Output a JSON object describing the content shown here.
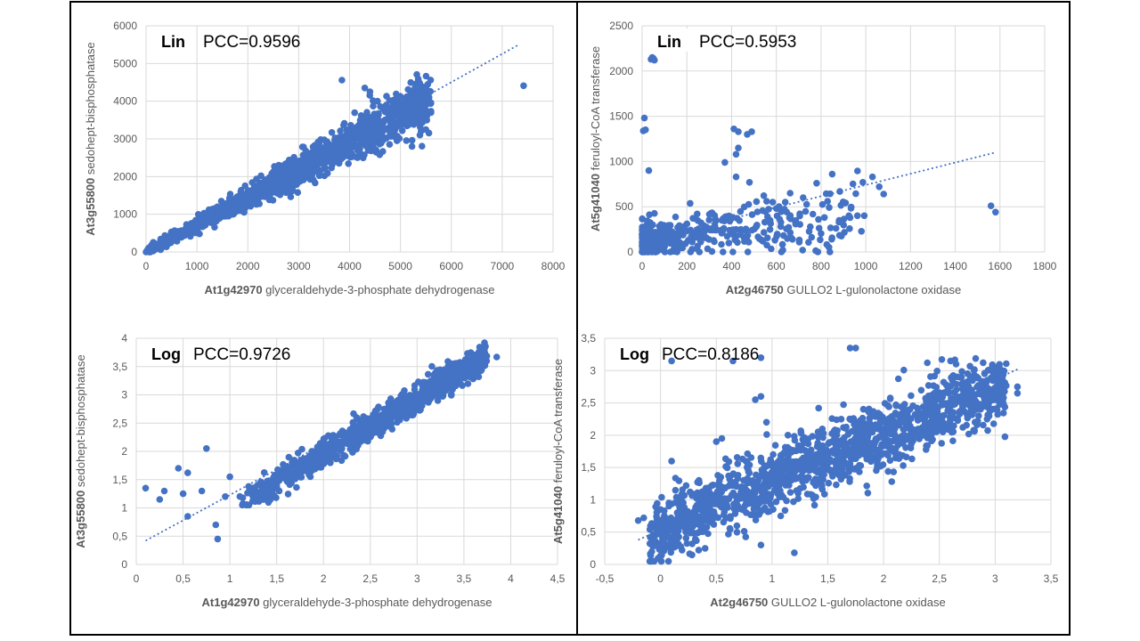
{
  "figure_title": "",
  "colors": {
    "points": "#4472C4",
    "trendline": "#4472C4",
    "grid": "#D9D9D9",
    "axis_text": "#595959",
    "border": "#000000"
  },
  "chart_data": [
    {
      "type": "scatter",
      "id": "top-left",
      "scale_label": "Lin",
      "pcc_label": "PCC=0.9596",
      "xlabel_gene": "At1g42970",
      "xlabel_desc": "glyceraldehyde-3-phosphate dehydrogenase",
      "ylabel_gene": "At3g55800",
      "ylabel_desc": "sedohept-bisphosphatase",
      "xlim": [
        0,
        8000
      ],
      "ylim": [
        0,
        6000
      ],
      "xticks": [
        0,
        1000,
        2000,
        3000,
        4000,
        5000,
        6000,
        7000,
        8000
      ],
      "yticks": [
        0,
        1000,
        2000,
        3000,
        4000,
        5000,
        6000
      ],
      "xtick_labels": [
        "0",
        "1000",
        "2000",
        "3000",
        "4000",
        "5000",
        "6000",
        "7000",
        "8000"
      ],
      "ytick_labels": [
        "0",
        "1000",
        "2000",
        "3000",
        "4000",
        "5000",
        "6000"
      ],
      "trendline": {
        "x": [
          0,
          7300
        ],
        "y": [
          0,
          5480
        ]
      },
      "points": [
        [
          7420,
          4410
        ],
        [
          5200,
          4200
        ],
        [
          4550,
          4000
        ],
        [
          4300,
          4350
        ],
        [
          4400,
          4250
        ],
        [
          3850,
          4560
        ],
        [
          5150,
          4310
        ],
        [
          5500,
          4380
        ],
        [
          5600,
          3700
        ],
        [
          3200,
          2600
        ],
        [
          2800,
          2000
        ]
      ],
      "cloud": {
        "n": 1300,
        "x_min": 0,
        "x_max": 5600,
        "x_shape": 0.85,
        "slope": 0.73,
        "intercept": 0,
        "noise": 0.09,
        "noise_abs": 70,
        "y_min": 0
      }
    },
    {
      "type": "scatter",
      "id": "top-right",
      "scale_label": "Lin",
      "pcc_label": "PCC=0.5953",
      "xlabel_gene": "At2g46750",
      "xlabel_desc": "GULLO2  L-gulonolactone oxidase",
      "ylabel_gene": "At5g41040",
      "ylabel_desc": "feruloyl-CoA transferase",
      "xlim": [
        0,
        1800
      ],
      "ylim": [
        0,
        2500
      ],
      "xticks": [
        0,
        200,
        400,
        600,
        800,
        1000,
        1200,
        1400,
        1600,
        1800
      ],
      "yticks": [
        0,
        500,
        1000,
        1500,
        2000,
        2500
      ],
      "xtick_labels": [
        "0",
        "200",
        "400",
        "600",
        "800",
        "1000",
        "1200",
        "1400",
        "1600",
        "1800"
      ],
      "ytick_labels": [
        "0",
        "500",
        "1000",
        "1500",
        "2000",
        "2500"
      ],
      "trendline": {
        "x": [
          0,
          1580
        ],
        "y": [
          120,
          1100
        ]
      },
      "points": [
        [
          40,
          2130
        ],
        [
          45,
          2150
        ],
        [
          55,
          2120
        ],
        [
          50,
          2140
        ],
        [
          10,
          1480
        ],
        [
          5,
          1340
        ],
        [
          15,
          1350
        ],
        [
          410,
          1360
        ],
        [
          430,
          1330
        ],
        [
          470,
          1300
        ],
        [
          490,
          1330
        ],
        [
          430,
          1150
        ],
        [
          420,
          1080
        ],
        [
          370,
          990
        ],
        [
          30,
          900
        ],
        [
          420,
          830
        ],
        [
          480,
          770
        ],
        [
          1030,
          830
        ],
        [
          1060,
          720
        ],
        [
          1080,
          640
        ],
        [
          850,
          860
        ],
        [
          780,
          760
        ],
        [
          1560,
          510
        ],
        [
          1580,
          440
        ],
        [
          930,
          380
        ],
        [
          880,
          330
        ],
        [
          600,
          480
        ],
        [
          640,
          550
        ],
        [
          720,
          600
        ]
      ],
      "cloud": {
        "n": 420,
        "x_min": 0,
        "x_max": 1000,
        "x_shape": 2.4,
        "slope": 0.33,
        "intercept": 120,
        "noise": 0.45,
        "noise_abs": 90,
        "y_min": 0
      }
    },
    {
      "type": "scatter",
      "id": "bottom-left",
      "scale_label": "Log",
      "pcc_label": "PCC=0.9726",
      "xlabel_gene": "At1g42970",
      "xlabel_desc": "glyceraldehyde-3-phosphate dehydrogenase",
      "ylabel_gene": "At3g55800",
      "ylabel_desc": "sedohept-bisphosphatase",
      "xlim": [
        0,
        4.5
      ],
      "ylim": [
        0,
        4
      ],
      "xticks": [
        0,
        0.5,
        1,
        1.5,
        2,
        2.5,
        3,
        3.5,
        4,
        4.5
      ],
      "yticks": [
        0,
        0.5,
        1,
        1.5,
        2,
        2.5,
        3,
        3.5,
        4
      ],
      "xtick_labels": [
        "0",
        "0,5",
        "1",
        "1,5",
        "2",
        "2,5",
        "3",
        "3,5",
        "4",
        "4,5"
      ],
      "ytick_labels": [
        "0",
        "0,5",
        "1",
        "1,5",
        "2",
        "2,5",
        "3",
        "3,5",
        "4"
      ],
      "trendline": {
        "x": [
          0.1,
          3.75
        ],
        "y": [
          0.42,
          3.7
        ]
      },
      "points": [
        [
          0.1,
          1.35
        ],
        [
          0.25,
          1.15
        ],
        [
          0.3,
          1.3
        ],
        [
          0.45,
          1.7
        ],
        [
          0.55,
          1.62
        ],
        [
          0.55,
          0.85
        ],
        [
          0.85,
          0.7
        ],
        [
          0.87,
          0.45
        ],
        [
          0.5,
          1.25
        ],
        [
          0.75,
          2.05
        ],
        [
          3.85,
          3.67
        ],
        [
          0.7,
          1.3
        ],
        [
          0.95,
          1.2
        ],
        [
          1.0,
          1.55
        ]
      ],
      "cloud": {
        "n": 1100,
        "x_min": 1.1,
        "x_max": 3.75,
        "x_shape": 0.7,
        "slope": 0.98,
        "intercept": 0.0,
        "noise": 0.0,
        "noise_abs": 0.12,
        "y_min": 1.05
      }
    },
    {
      "type": "scatter",
      "id": "bottom-right",
      "scale_label": "Log",
      "pcc_label": "PCC=0.8186",
      "xlabel_gene": "At2g46750",
      "xlabel_desc": "GULLO2  L-gulonolactone oxidase",
      "ylabel_gene": "At5g41040",
      "ylabel_desc": "feruloyl-CoA transferase",
      "xlim": [
        -0.5,
        3.5
      ],
      "ylim": [
        0,
        3.5
      ],
      "xticks": [
        -0.5,
        0,
        0.5,
        1,
        1.5,
        2,
        2.5,
        3,
        3.5
      ],
      "yticks": [
        0,
        0.5,
        1,
        1.5,
        2,
        2.5,
        3,
        3.5
      ],
      "xtick_labels": [
        "-0,5",
        "0",
        "0,5",
        "1",
        "1,5",
        "2",
        "2,5",
        "3",
        "3,5"
      ],
      "ytick_labels": [
        "0",
        "0,5",
        "1",
        "1,5",
        "2",
        "2,5",
        "3",
        "3,5"
      ],
      "trendline": {
        "x": [
          -0.2,
          3.2
        ],
        "y": [
          0.38,
          3.02
        ]
      },
      "points": [
        [
          0.1,
          3.15
        ],
        [
          0.65,
          3.15
        ],
        [
          0.9,
          3.2
        ],
        [
          1.7,
          3.35
        ],
        [
          1.75,
          3.35
        ],
        [
          2.6,
          3.15
        ],
        [
          2.65,
          3.1
        ],
        [
          3.2,
          2.75
        ],
        [
          3.2,
          2.65
        ],
        [
          -0.2,
          0.68
        ],
        [
          -0.15,
          0.72
        ],
        [
          0.0,
          0.85
        ],
        [
          0.1,
          1.6
        ],
        [
          0.4,
          0.25
        ],
        [
          0.15,
          0.8
        ],
        [
          0.9,
          0.3
        ],
        [
          1.2,
          0.18
        ],
        [
          0.85,
          2.55
        ],
        [
          0.9,
          2.6
        ],
        [
          0.95,
          2.2
        ],
        [
          0.5,
          1.9
        ],
        [
          0.55,
          1.95
        ]
      ],
      "cloud": {
        "n": 1500,
        "x_min": -0.1,
        "x_max": 3.1,
        "x_shape": 1.0,
        "slope": 0.72,
        "intercept": 0.55,
        "noise": 0.0,
        "noise_abs": 0.26,
        "y_min": 0.05
      }
    }
  ]
}
